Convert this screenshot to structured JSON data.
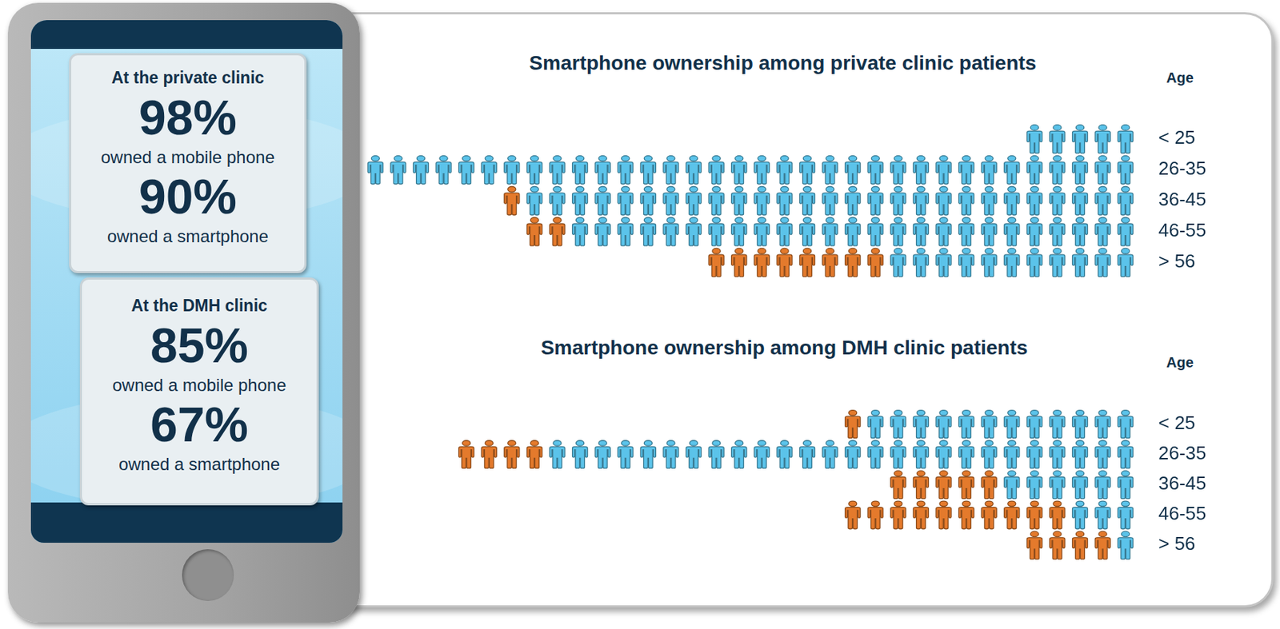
{
  "phone_panel": [
    {
      "heading": "At the private clinic",
      "stats": [
        {
          "figure": "98%",
          "text": "owned a mobile phone"
        },
        {
          "figure": "90%",
          "text": "owned a smartphone"
        }
      ]
    },
    {
      "heading": "At the DMH clinic",
      "stats": [
        {
          "figure": "85%",
          "text": "owned a mobile phone"
        },
        {
          "figure": "67%",
          "text": "owned a smartphone"
        }
      ]
    }
  ],
  "chart_data": [
    {
      "type": "bar",
      "orientation": "horizontal",
      "stacked": true,
      "marker": "person",
      "tick_labels": "y",
      "title": "Smartphone ownership among private clinic patients",
      "ylabel": "Age",
      "categories": [
        "< 25",
        "26-35",
        "36-45",
        "46-55",
        "> 56"
      ],
      "series": [
        {
          "color": "#5bc3ea",
          "values": [
            5,
            34,
            27,
            25,
            11
          ]
        },
        {
          "color": "#e47a2c",
          "values": [
            0,
            0,
            1,
            2,
            8
          ]
        }
      ]
    },
    {
      "type": "bar",
      "orientation": "horizontal",
      "stacked": true,
      "marker": "person",
      "tick_labels": "y",
      "title": "Smartphone ownership among DMH clinic patients",
      "ylabel": "Age",
      "categories": [
        "< 25",
        "26-35",
        "36-45",
        "46-55",
        "> 56"
      ],
      "series": [
        {
          "color": "#5bc3ea",
          "values": [
            12,
            26,
            6,
            3,
            1
          ]
        },
        {
          "color": "#e47a2c",
          "values": [
            1,
            4,
            5,
            10,
            4
          ]
        }
      ]
    }
  ]
}
